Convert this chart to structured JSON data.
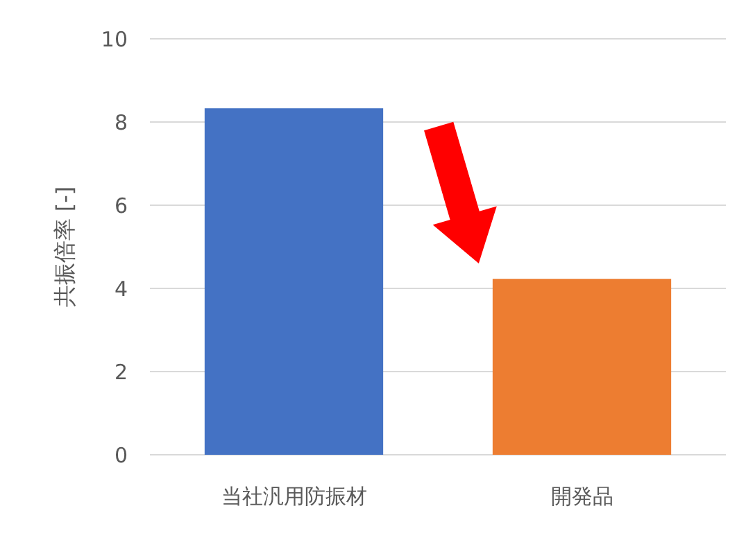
{
  "chart_data": {
    "type": "bar",
    "ylabel": "共振倍率 [-]",
    "categories": [
      "当社汎用防振材",
      "開発品"
    ],
    "values": [
      8.33,
      4.23
    ],
    "colors": [
      "#4472c4",
      "#ed7d31"
    ],
    "ylim": [
      0,
      10
    ],
    "yticks": [
      0,
      2,
      4,
      6,
      8,
      10
    ],
    "grid": "y"
  }
}
